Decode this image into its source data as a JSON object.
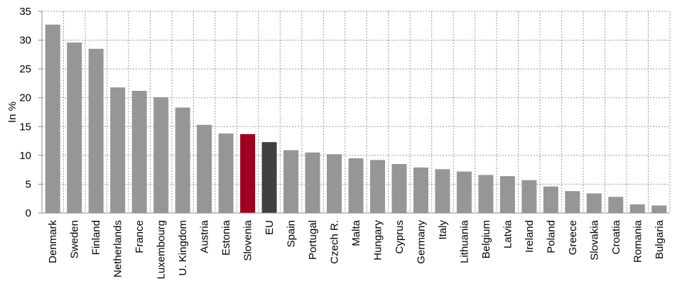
{
  "chart_data": {
    "type": "bar",
    "title": "",
    "xlabel": "",
    "ylabel": "In %",
    "ylim": [
      0,
      35
    ],
    "yticks": [
      "0",
      "5",
      "10",
      "15",
      "20",
      "25",
      "30",
      "35"
    ],
    "grid": true,
    "categories": [
      "Denmark",
      "Sweden",
      "Finland",
      "Netherlands",
      "France",
      "Luxembourg",
      "U. Kingdom",
      "Austria",
      "Estonia",
      "Slovenia",
      "EU",
      "Spain",
      "Portugal",
      "Czech R.",
      "Malta",
      "Hungary",
      "Cyprus",
      "Germany",
      "Italy",
      "Lithuania",
      "Belgium",
      "Latvia",
      "Ireland",
      "Poland",
      "Greece",
      "Slovakia",
      "Croatia",
      "Romania",
      "Bulgaria"
    ],
    "values": [
      32.7,
      29.6,
      28.5,
      21.8,
      21.2,
      20.1,
      18.3,
      15.3,
      13.8,
      13.7,
      12.3,
      10.9,
      10.5,
      10.2,
      9.5,
      9.2,
      8.5,
      7.9,
      7.6,
      7.2,
      6.6,
      6.4,
      5.7,
      4.6,
      3.8,
      3.4,
      2.8,
      1.5,
      1.3
    ],
    "colors": {
      "default": "#969696",
      "Slovenia": "#a00020",
      "EU": "#404040",
      "grid": "#9a9a9a",
      "axis": "#8a8a8a"
    }
  }
}
